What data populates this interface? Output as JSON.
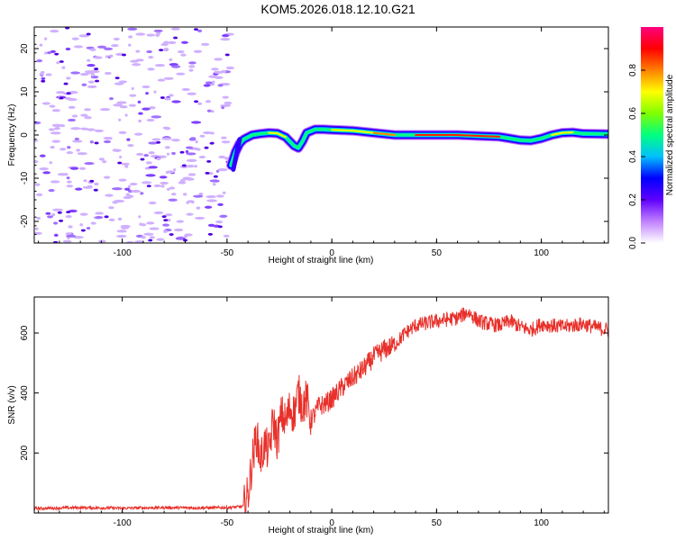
{
  "title": "KOM5.2026.018.12.10.G21",
  "chart_data": [
    {
      "type": "heatmap",
      "xlabel": "Height of straight line (km)",
      "ylabel": "Frequency (Hz)",
      "xlim": [
        -142,
        132
      ],
      "ylim": [
        -25,
        25
      ],
      "xticks": [
        -100,
        -50,
        0,
        50,
        100
      ],
      "xtick_labels": [
        "-100",
        "-50",
        "0",
        "50",
        "100"
      ],
      "yticks": [
        -20,
        -10,
        0,
        10,
        20
      ],
      "ytick_labels": [
        "-20",
        "-10",
        "0",
        "10",
        "20"
      ],
      "noise_region_xmax": -48,
      "ridge": {
        "x": [
          -48,
          -46,
          -44,
          -42,
          -38,
          -34,
          -30,
          -26,
          -22,
          -18,
          -16,
          -14,
          -12,
          -8,
          -4,
          0,
          10,
          20,
          30,
          40,
          50,
          60,
          70,
          80,
          85,
          90,
          95,
          100,
          105,
          110,
          115,
          120,
          132
        ],
        "freq": [
          -7,
          -4,
          -2,
          -1,
          0,
          0.3,
          0.5,
          0.4,
          -0.5,
          -2.5,
          -3,
          -1.5,
          0.5,
          1.3,
          1.3,
          1.2,
          1,
          0.5,
          0,
          0,
          0,
          0,
          -0.2,
          -0.4,
          -0.8,
          -1.2,
          -1.3,
          -0.8,
          0,
          0.5,
          0.6,
          0.3,
          0.2
        ]
      },
      "colorbar": {
        "label": "Normalized spectral amplitude",
        "range": [
          0,
          1
        ],
        "ticks": [
          0.0,
          0.2,
          0.4,
          0.6,
          0.8
        ],
        "tick_labels": [
          "0.0",
          "0.2",
          "0.4",
          "0.6",
          "0.8"
        ],
        "colors": [
          "#ffffff",
          "#c080ff",
          "#6000ff",
          "#0000ff",
          "#00c0ff",
          "#00ff80",
          "#80ff00",
          "#ffff00",
          "#ff8000",
          "#ff0000",
          "#ff0080"
        ]
      }
    },
    {
      "type": "line",
      "xlabel": "Height of straight line (km)",
      "ylabel": "SNR (v/v)",
      "xlim": [
        -142,
        132
      ],
      "ylim": [
        0,
        720
      ],
      "xticks": [
        -100,
        -50,
        0,
        50,
        100
      ],
      "xtick_labels": [
        "-100",
        "-50",
        "0",
        "50",
        "100"
      ],
      "yticks": [
        200,
        400,
        600
      ],
      "ytick_labels": [
        "200",
        "400",
        "600"
      ],
      "color": "#e8302a",
      "series": [
        {
          "name": "SNR",
          "x": [
            -142,
            -120,
            -100,
            -80,
            -60,
            -50,
            -45,
            -42,
            -40,
            -38,
            -36,
            -34,
            -32,
            -30,
            -28,
            -26,
            -24,
            -22,
            -20,
            -18,
            -16,
            -14,
            -12,
            -10,
            -8,
            -6,
            -4,
            -2,
            0,
            5,
            10,
            15,
            20,
            25,
            30,
            35,
            40,
            50,
            60,
            65,
            70,
            75,
            80,
            85,
            90,
            95,
            100,
            105,
            110,
            115,
            120,
            125,
            132
          ],
          "values": [
            15,
            18,
            16,
            18,
            17,
            18,
            20,
            22,
            60,
            170,
            260,
            180,
            230,
            200,
            310,
            240,
            330,
            300,
            350,
            330,
            400,
            360,
            380,
            310,
            330,
            360,
            360,
            370,
            380,
            420,
            450,
            480,
            520,
            545,
            560,
            600,
            625,
            640,
            650,
            670,
            640,
            630,
            625,
            640,
            620,
            610,
            630,
            625,
            620,
            625,
            630,
            620,
            610
          ]
        }
      ]
    }
  ]
}
